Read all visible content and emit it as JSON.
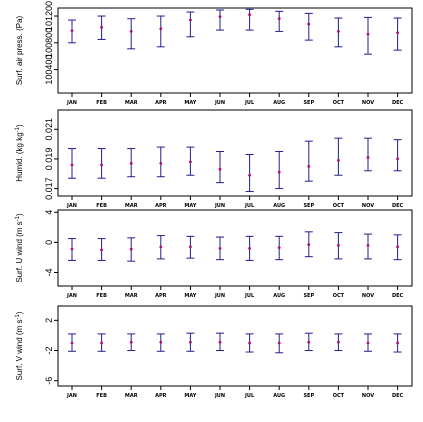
{
  "colors": {
    "errorbar": "#1f1f8f",
    "point": "#b0106a",
    "frame": "#000000"
  },
  "chart_data": [
    {
      "type": "errorbar",
      "ylabel": "Surf. air press. (Pa)",
      "ylabel_parts": [
        {
          "t": "Surf. air press. (Pa)",
          "sup": false
        }
      ],
      "categories": [
        "JAN",
        "FEB",
        "MAR",
        "APR",
        "MAY",
        "JUN",
        "JUL",
        "AUG",
        "SEP",
        "OCT",
        "NOV",
        "DEC"
      ],
      "yticks": [
        100400,
        100800,
        101200
      ],
      "ytick_labels": [
        "100400",
        "100800",
        "101200"
      ],
      "ylim": [
        100050,
        101320
      ],
      "mean": [
        100980,
        101030,
        100970,
        101010,
        101140,
        101190,
        101220,
        101160,
        101080,
        100970,
        100930,
        100950
      ],
      "lower": [
        100800,
        100850,
        100710,
        100740,
        100890,
        100990,
        100990,
        100970,
        100840,
        100740,
        100630,
        100690
      ],
      "upper": [
        101140,
        101200,
        101160,
        101200,
        101260,
        101290,
        101300,
        101270,
        101240,
        101170,
        101180,
        101170
      ]
    },
    {
      "type": "errorbar",
      "ylabel": "Humid. (kg kg-1)",
      "ylabel_parts": [
        {
          "t": "Humid. (kg kg",
          "sup": false
        },
        {
          "t": "-1",
          "sup": true
        },
        {
          "t": ")",
          "sup": false
        }
      ],
      "categories": [
        "JAN",
        "FEB",
        "MAR",
        "APR",
        "MAY",
        "JUN",
        "JUL",
        "AUG",
        "SEP",
        "OCT",
        "NOV",
        "DEC"
      ],
      "yticks": [
        0.017,
        0.019,
        0.021
      ],
      "ytick_labels": [
        "0.017",
        "0.019",
        "0.021"
      ],
      "ylim": [
        0.0165,
        0.0223
      ],
      "mean": [
        0.0186,
        0.0186,
        0.0187,
        0.0187,
        0.0188,
        0.0183,
        0.0179,
        0.0181,
        0.0185,
        0.0189,
        0.0191,
        0.019
      ],
      "lower": [
        0.0177,
        0.0177,
        0.0178,
        0.0178,
        0.0179,
        0.0174,
        0.0168,
        0.017,
        0.0175,
        0.0179,
        0.0182,
        0.0182
      ],
      "upper": [
        0.0197,
        0.0197,
        0.0197,
        0.0198,
        0.0198,
        0.0195,
        0.0193,
        0.0195,
        0.0202,
        0.0204,
        0.0204,
        0.0203
      ]
    },
    {
      "type": "errorbar",
      "ylabel": "Surf. U wind (m s-1)",
      "ylabel_parts": [
        {
          "t": "Surf. U wind (m s",
          "sup": false
        },
        {
          "t": "-1",
          "sup": true
        },
        {
          "t": ")",
          "sup": false
        }
      ],
      "categories": [
        "JAN",
        "FEB",
        "MAR",
        "APR",
        "MAY",
        "JUN",
        "JUL",
        "AUG",
        "SEP",
        "OCT",
        "NOV",
        "DEC"
      ],
      "yticks": [
        -4,
        0,
        4
      ],
      "ytick_labels": [
        "-4",
        "0",
        "4"
      ],
      "ylim": [
        -5.8,
        4.3
      ],
      "mean": [
        -0.9,
        -1.0,
        -0.9,
        -0.6,
        -0.6,
        -0.8,
        -0.8,
        -0.7,
        -0.3,
        -0.4,
        -0.4,
        -0.6
      ],
      "lower": [
        -2.4,
        -2.4,
        -2.5,
        -2.2,
        -2.1,
        -2.3,
        -2.4,
        -2.3,
        -1.9,
        -2.2,
        -2.2,
        -2.3
      ],
      "upper": [
        0.5,
        0.5,
        0.6,
        0.9,
        0.8,
        0.7,
        0.8,
        0.8,
        1.4,
        1.3,
        1.1,
        1.0
      ]
    },
    {
      "type": "errorbar",
      "ylabel": "Surf. V wind (m s-1)",
      "ylabel_parts": [
        {
          "t": "Surf. V wind (m s",
          "sup": false
        },
        {
          "t": "-1",
          "sup": true
        },
        {
          "t": ")",
          "sup": false
        }
      ],
      "categories": [
        "JAN",
        "FEB",
        "MAR",
        "APR",
        "MAY",
        "JUN",
        "JUL",
        "AUG",
        "SEP",
        "OCT",
        "NOV",
        "DEC"
      ],
      "yticks": [
        -6,
        -2,
        2
      ],
      "ytick_labels": [
        "-6",
        "-2",
        "2"
      ],
      "ylim": [
        -6.7,
        3.9
      ],
      "mean": [
        -1.0,
        -1.0,
        -0.9,
        -0.9,
        -0.9,
        -0.9,
        -1.0,
        -1.0,
        -0.9,
        -0.9,
        -1.0,
        -1.0
      ],
      "lower": [
        -2.1,
        -2.1,
        -2.0,
        -2.1,
        -2.1,
        -2.0,
        -2.2,
        -2.3,
        -2.0,
        -2.0,
        -2.1,
        -2.2
      ],
      "upper": [
        0.2,
        0.2,
        0.2,
        0.2,
        0.3,
        0.3,
        0.2,
        0.2,
        0.3,
        0.2,
        0.2,
        0.2
      ]
    }
  ]
}
